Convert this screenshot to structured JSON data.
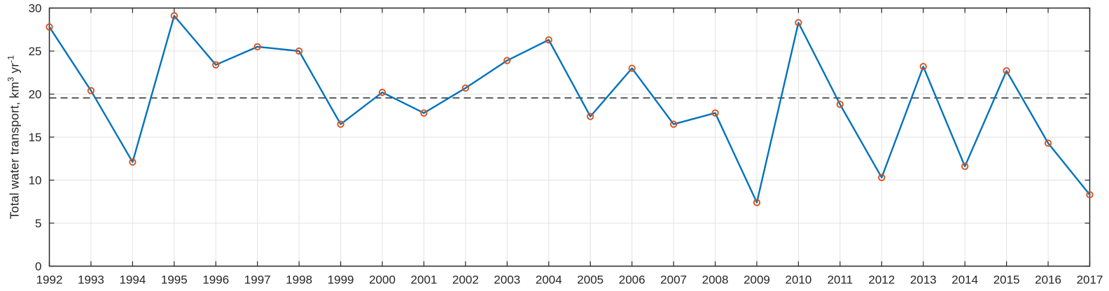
{
  "figure": {
    "ylabel_parts": {
      "base1": "Total water transport, km",
      "sup1": "3",
      "base2": " yr",
      "sup2": "-1"
    }
  },
  "chart_data": {
    "type": "line",
    "title": "",
    "xlabel": "",
    "ylabel": "Total water transport, km³ yr⁻¹",
    "x": [
      1992,
      1993,
      1994,
      1995,
      1996,
      1997,
      1998,
      1999,
      2000,
      2001,
      2002,
      2003,
      2004,
      2005,
      2006,
      2007,
      2008,
      2009,
      2010,
      2011,
      2012,
      2013,
      2014,
      2015,
      2016,
      2017
    ],
    "series": [
      {
        "name": "Total water transport",
        "values": [
          27.8,
          20.4,
          12.1,
          29.1,
          23.4,
          25.5,
          25.0,
          16.5,
          20.2,
          17.8,
          20.7,
          23.9,
          26.3,
          17.4,
          23.0,
          16.5,
          17.8,
          7.4,
          28.3,
          18.8,
          10.3,
          23.2,
          11.6,
          22.7,
          14.3,
          8.3
        ]
      }
    ],
    "mean_line": 19.55,
    "xlim": [
      1992,
      2017
    ],
    "ylim": [
      0,
      30
    ],
    "xticks": [
      1992,
      1993,
      1994,
      1995,
      1996,
      1997,
      1998,
      1999,
      2000,
      2001,
      2002,
      2003,
      2004,
      2005,
      2006,
      2007,
      2008,
      2009,
      2010,
      2011,
      2012,
      2013,
      2014,
      2015,
      2016,
      2017
    ],
    "yticks": [
      0,
      5,
      10,
      15,
      20,
      25,
      30
    ],
    "grid": true,
    "legend": null,
    "styles": {
      "line_color": "#0072BD",
      "marker": "o",
      "marker_color": "#D95319",
      "mean_line_color": "#000000",
      "mean_line_style": "dashed",
      "grid_color": "#E2E2E2",
      "axis_color": "#262626",
      "background": "#FFFFFF"
    }
  }
}
